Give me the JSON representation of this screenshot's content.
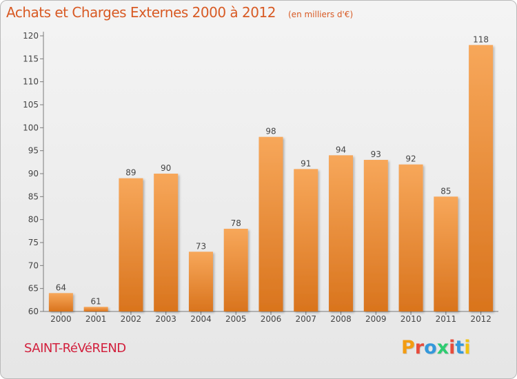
{
  "title": "Achats et Charges Externes 2000 à 2012",
  "subtitle": "(en milliers d'€)",
  "commune": "SAINT-RéVéREND",
  "logo": {
    "letters": [
      "P",
      "r",
      "o",
      "x",
      "i",
      "t",
      "i"
    ],
    "colors": [
      "#f39c12",
      "#e74c3c",
      "#3498db",
      "#2ecc71",
      "#e74c3c",
      "#3498db",
      "#f1c40f"
    ]
  },
  "colors": {
    "bar_top": "#f7a75a",
    "bar_bottom": "#d9741d",
    "title": "#d85a24",
    "commune": "#d21f3c"
  },
  "chart_data": {
    "type": "bar",
    "title": "Achats et Charges Externes 2000 à 2012",
    "subtitle": "(en milliers d'€)",
    "categories": [
      "2000",
      "2001",
      "2002",
      "2003",
      "2004",
      "2005",
      "2006",
      "2007",
      "2008",
      "2009",
      "2010",
      "2011",
      "2012"
    ],
    "values": [
      64,
      61,
      89,
      90,
      73,
      78,
      98,
      91,
      94,
      93,
      92,
      85,
      118
    ],
    "ylim": [
      60,
      120
    ],
    "yticks": [
      60,
      65,
      70,
      75,
      80,
      85,
      90,
      95,
      100,
      105,
      110,
      115,
      120
    ],
    "grid": false,
    "legend": "none"
  }
}
